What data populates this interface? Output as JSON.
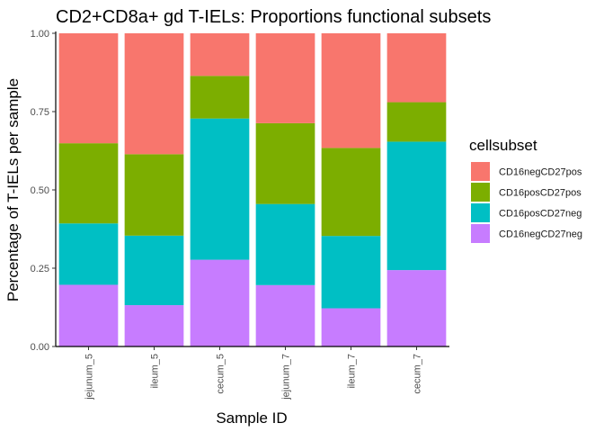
{
  "chart_data": {
    "type": "bar",
    "stacked": true,
    "title": "CD2+CD8a+ gd T-IELs: Proportions functional subsets",
    "xlabel": "Sample ID",
    "ylabel": "Percentage of T-IELs per sample",
    "categories": [
      "jejunum_5",
      "ileum_5",
      "cecum_5",
      "jejunum_7",
      "ileum_7",
      "cecum_7"
    ],
    "ylim": [
      0,
      1
    ],
    "yticks": [
      "0.00",
      "0.25",
      "0.50",
      "0.75",
      "1.00"
    ],
    "grid": false,
    "legend_position": "right",
    "legend_title": "cellsubset",
    "series": [
      {
        "name": "CD16negCD27neg",
        "color": "#C77CFF",
        "values": [
          0.197,
          0.132,
          0.277,
          0.196,
          0.122,
          0.244
        ]
      },
      {
        "name": "CD16posCD27neg",
        "color": "#00BFC4",
        "values": [
          0.196,
          0.222,
          0.451,
          0.259,
          0.231,
          0.41
        ]
      },
      {
        "name": "CD16posCD27pos",
        "color": "#7CAE00",
        "values": [
          0.256,
          0.26,
          0.136,
          0.258,
          0.281,
          0.126
        ]
      },
      {
        "name": "CD16negCD27pos",
        "color": "#F8766D",
        "values": [
          0.351,
          0.386,
          0.136,
          0.287,
          0.366,
          0.22
        ]
      }
    ],
    "legend_order": [
      "CD16negCD27pos",
      "CD16posCD27pos",
      "CD16posCD27neg",
      "CD16negCD27neg"
    ]
  }
}
